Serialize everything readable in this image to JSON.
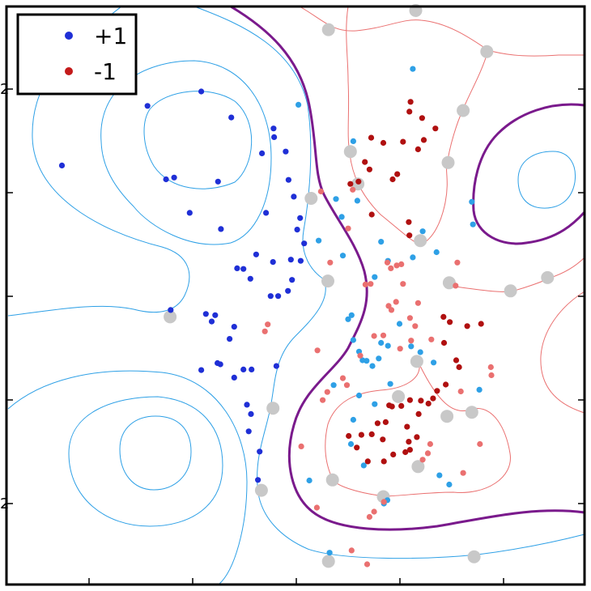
{
  "chart_data": {
    "type": "scatter",
    "title": "",
    "xlabel": "",
    "ylabel": "",
    "xlim": [
      0,
      1
    ],
    "ylim": [
      0,
      1
    ],
    "grid": false,
    "legend": {
      "placement": "top-left",
      "entries": [
        {
          "label": "+1",
          "color": "#1f2fd6"
        },
        {
          "label": "-1",
          "color": "#c41a1a"
        }
      ]
    },
    "y_tick_labels": [
      "2",
      "",
      "",
      "",
      "2"
    ],
    "colors": {
      "class_pos_dark": "#1f2fd6",
      "class_pos_light": "#2ea0e6",
      "class_neg_dark": "#b01010",
      "class_neg_light": "#ea7070",
      "decision_boundary": "#7a1a8c",
      "pos_contour": "#2ea0e6",
      "neg_contour": "#ea7070",
      "support_vector_ring": "#c8c8c8"
    },
    "series": [
      {
        "name": "+1",
        "points": [
          [
            0.096,
            0.725
          ],
          [
            0.244,
            0.828
          ],
          [
            0.337,
            0.853
          ],
          [
            0.389,
            0.808
          ],
          [
            0.442,
            0.746
          ],
          [
            0.462,
            0.789
          ],
          [
            0.276,
            0.701
          ],
          [
            0.29,
            0.704
          ],
          [
            0.366,
            0.697
          ],
          [
            0.463,
            0.774
          ],
          [
            0.483,
            0.749
          ],
          [
            0.488,
            0.7
          ],
          [
            0.449,
            0.643
          ],
          [
            0.497,
            0.671
          ],
          [
            0.508,
            0.634
          ],
          [
            0.317,
            0.643
          ],
          [
            0.371,
            0.615
          ],
          [
            0.503,
            0.614
          ],
          [
            0.515,
            0.59
          ],
          [
            0.509,
            0.56
          ],
          [
            0.492,
            0.562
          ],
          [
            0.461,
            0.558
          ],
          [
            0.432,
            0.571
          ],
          [
            0.41,
            0.546
          ],
          [
            0.399,
            0.547
          ],
          [
            0.422,
            0.529
          ],
          [
            0.457,
            0.499
          ],
          [
            0.47,
            0.499
          ],
          [
            0.487,
            0.508
          ],
          [
            0.494,
            0.527
          ],
          [
            0.345,
            0.468
          ],
          [
            0.361,
            0.466
          ],
          [
            0.355,
            0.455
          ],
          [
            0.394,
            0.446
          ],
          [
            0.386,
            0.425
          ],
          [
            0.37,
            0.381
          ],
          [
            0.337,
            0.371
          ],
          [
            0.365,
            0.383
          ],
          [
            0.394,
            0.358
          ],
          [
            0.41,
            0.372
          ],
          [
            0.424,
            0.372
          ],
          [
            0.467,
            0.378
          ],
          [
            0.416,
            0.311
          ],
          [
            0.423,
            0.295
          ],
          [
            0.419,
            0.265
          ],
          [
            0.438,
            0.23
          ],
          [
            0.435,
            0.181
          ],
          [
            0.284,
            0.475
          ]
        ]
      },
      {
        "name": "+1",
        "points": [
          [
            0.505,
            0.83
          ],
          [
            0.703,
            0.892
          ],
          [
            0.6,
            0.767
          ],
          [
            0.57,
            0.667
          ],
          [
            0.607,
            0.664
          ],
          [
            0.648,
            0.593
          ],
          [
            0.54,
            0.595
          ],
          [
            0.58,
            0.636
          ],
          [
            0.582,
            0.569
          ],
          [
            0.637,
            0.532
          ],
          [
            0.66,
            0.56
          ],
          [
            0.703,
            0.566
          ],
          [
            0.72,
            0.611
          ],
          [
            0.744,
            0.575
          ],
          [
            0.591,
            0.459
          ],
          [
            0.597,
            0.466
          ],
          [
            0.6,
            0.423
          ],
          [
            0.61,
            0.403
          ],
          [
            0.616,
            0.388
          ],
          [
            0.623,
            0.387
          ],
          [
            0.633,
            0.378
          ],
          [
            0.644,
            0.391
          ],
          [
            0.648,
            0.418
          ],
          [
            0.66,
            0.413
          ],
          [
            0.68,
            0.451
          ],
          [
            0.7,
            0.412
          ],
          [
            0.716,
            0.402
          ],
          [
            0.739,
            0.384
          ],
          [
            0.664,
            0.347
          ],
          [
            0.61,
            0.327
          ],
          [
            0.6,
            0.285
          ],
          [
            0.566,
            0.345
          ],
          [
            0.596,
            0.243
          ],
          [
            0.618,
            0.206
          ],
          [
            0.659,
            0.146
          ],
          [
            0.653,
            0.14
          ],
          [
            0.749,
            0.189
          ],
          [
            0.766,
            0.173
          ],
          [
            0.805,
            0.662
          ],
          [
            0.807,
            0.623
          ],
          [
            0.818,
            0.337
          ],
          [
            0.637,
            0.312
          ],
          [
            0.524,
            0.18
          ],
          [
            0.559,
            0.055
          ]
        ]
      },
      {
        "name": "-1",
        "points": [
          [
            0.699,
            0.835
          ],
          [
            0.697,
            0.818
          ],
          [
            0.652,
            0.764
          ],
          [
            0.719,
            0.807
          ],
          [
            0.742,
            0.789
          ],
          [
            0.722,
            0.769
          ],
          [
            0.712,
            0.753
          ],
          [
            0.686,
            0.766
          ],
          [
            0.631,
            0.773
          ],
          [
            0.62,
            0.731
          ],
          [
            0.595,
            0.693
          ],
          [
            0.609,
            0.697
          ],
          [
            0.628,
            0.718
          ],
          [
            0.676,
            0.71
          ],
          [
            0.668,
            0.701
          ],
          [
            0.632,
            0.64
          ],
          [
            0.696,
            0.627
          ],
          [
            0.697,
            0.604
          ],
          [
            0.756,
            0.463
          ],
          [
            0.767,
            0.454
          ],
          [
            0.797,
            0.447
          ],
          [
            0.821,
            0.451
          ],
          [
            0.757,
            0.418
          ],
          [
            0.778,
            0.388
          ],
          [
            0.783,
            0.376
          ],
          [
            0.76,
            0.346
          ],
          [
            0.745,
            0.335
          ],
          [
            0.738,
            0.322
          ],
          [
            0.73,
            0.313
          ],
          [
            0.717,
            0.318
          ],
          [
            0.698,
            0.319
          ],
          [
            0.683,
            0.309
          ],
          [
            0.667,
            0.308
          ],
          [
            0.642,
            0.279
          ],
          [
            0.632,
            0.26
          ],
          [
            0.614,
            0.259
          ],
          [
            0.592,
            0.257
          ],
          [
            0.606,
            0.237
          ],
          [
            0.625,
            0.213
          ],
          [
            0.653,
            0.213
          ],
          [
            0.669,
            0.225
          ],
          [
            0.69,
            0.229
          ],
          [
            0.696,
            0.247
          ],
          [
            0.71,
            0.255
          ],
          [
            0.713,
            0.295
          ],
          [
            0.693,
            0.273
          ],
          [
            0.651,
            0.251
          ],
          [
            0.656,
            0.281
          ],
          [
            0.662,
            0.31
          ],
          [
            0.698,
            0.233
          ]
        ]
      },
      {
        "name": "-1",
        "points": [
          [
            0.544,
            0.68
          ],
          [
            0.591,
            0.616
          ],
          [
            0.599,
            0.683
          ],
          [
            0.56,
            0.557
          ],
          [
            0.659,
            0.557
          ],
          [
            0.665,
            0.547
          ],
          [
            0.675,
            0.552
          ],
          [
            0.683,
            0.554
          ],
          [
            0.686,
            0.52
          ],
          [
            0.674,
            0.489
          ],
          [
            0.666,
            0.475
          ],
          [
            0.63,
            0.52
          ],
          [
            0.621,
            0.519
          ],
          [
            0.652,
            0.431
          ],
          [
            0.681,
            0.408
          ],
          [
            0.7,
            0.422
          ],
          [
            0.707,
            0.447
          ],
          [
            0.735,
            0.424
          ],
          [
            0.777,
            0.517
          ],
          [
            0.78,
            0.557
          ],
          [
            0.712,
            0.487
          ],
          [
            0.447,
            0.438
          ],
          [
            0.452,
            0.45
          ],
          [
            0.538,
            0.405
          ],
          [
            0.582,
            0.357
          ],
          [
            0.589,
            0.345
          ],
          [
            0.547,
            0.319
          ],
          [
            0.555,
            0.333
          ],
          [
            0.612,
            0.396
          ],
          [
            0.636,
            0.43
          ],
          [
            0.661,
            0.482
          ],
          [
            0.698,
            0.461
          ],
          [
            0.786,
            0.334
          ],
          [
            0.839,
            0.362
          ],
          [
            0.838,
            0.376
          ],
          [
            0.819,
            0.243
          ],
          [
            0.79,
            0.193
          ],
          [
            0.72,
            0.216
          ],
          [
            0.729,
            0.227
          ],
          [
            0.733,
            0.243
          ],
          [
            0.653,
            0.143
          ],
          [
            0.636,
            0.126
          ],
          [
            0.628,
            0.117
          ],
          [
            0.537,
            0.133
          ],
          [
            0.51,
            0.239
          ],
          [
            0.624,
            0.035
          ],
          [
            0.597,
            0.059
          ]
        ]
      },
      {
        "name": "",
        "points": [
          [
            0.283,
            0.463
          ],
          [
            0.527,
            0.668
          ],
          [
            0.556,
            0.525
          ],
          [
            0.461,
            0.305
          ],
          [
            0.441,
            0.163
          ],
          [
            0.557,
            0.04
          ],
          [
            0.809,
            0.048
          ],
          [
            0.557,
            0.96
          ],
          [
            0.708,
            0.993
          ],
          [
            0.831,
            0.922
          ],
          [
            0.79,
            0.82
          ],
          [
            0.764,
            0.73
          ],
          [
            0.716,
            0.595
          ],
          [
            0.766,
            0.522
          ],
          [
            0.872,
            0.508
          ],
          [
            0.936,
            0.531
          ],
          [
            0.71,
            0.386
          ],
          [
            0.678,
            0.325
          ],
          [
            0.762,
            0.291
          ],
          [
            0.805,
            0.298
          ],
          [
            0.712,
            0.204
          ],
          [
            0.564,
            0.181
          ],
          [
            0.652,
            0.152
          ],
          [
            0.595,
            0.749
          ],
          [
            0.608,
            0.693
          ]
        ]
      }
    ]
  }
}
